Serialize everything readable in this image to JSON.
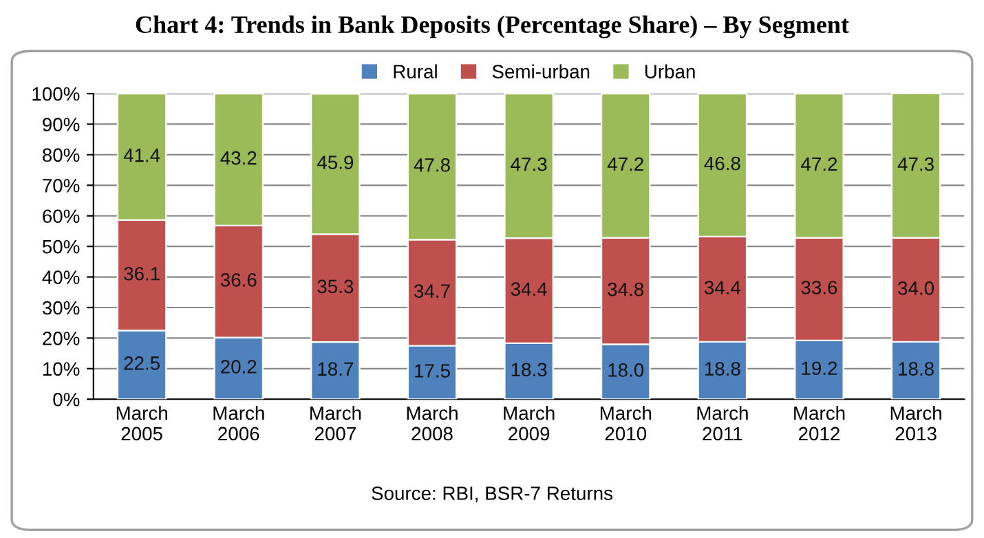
{
  "chart_data": {
    "type": "bar",
    "title": "Chart 4: Trends in Bank Deposits (Percentage Share) – By Segment",
    "categories": [
      "March\n2005",
      "March\n2006",
      "March\n2007",
      "March\n2008",
      "March\n2009",
      "March\n2010",
      "March\n2011",
      "March\n2012",
      "March\n2013"
    ],
    "series": [
      {
        "name": "Rural",
        "color": "#4f81bd",
        "values": [
          22.5,
          20.2,
          18.7,
          17.5,
          18.3,
          18.0,
          18.8,
          19.2,
          18.8
        ],
        "value_labels": [
          "22.5",
          "20.2",
          "18.7",
          "17.5",
          "18.3",
          "18.0",
          "18.8",
          "19.2",
          "18.8"
        ]
      },
      {
        "name": "Semi-urban",
        "color": "#c0504d",
        "values": [
          36.1,
          36.6,
          35.3,
          34.7,
          34.4,
          34.8,
          34.4,
          33.6,
          34.0
        ],
        "value_labels": [
          "36.1",
          "36.6",
          "35.3",
          "34.7",
          "34.4",
          "34.8",
          "34.4",
          "33.6",
          "34.0"
        ]
      },
      {
        "name": "Urban",
        "color": "#9bbb59",
        "values": [
          41.4,
          43.2,
          45.9,
          47.8,
          47.3,
          47.2,
          46.8,
          47.2,
          47.3
        ],
        "value_labels": [
          "41.4",
          "43.2",
          "45.9",
          "47.8",
          "47.3",
          "47.2",
          "46.8",
          "47.2",
          "47.3"
        ]
      }
    ],
    "stacked": true,
    "ylim": [
      0,
      100
    ],
    "yticks": [
      {
        "value": 0,
        "label": "0%"
      },
      {
        "value": 10,
        "label": "10%"
      },
      {
        "value": 20,
        "label": "20%"
      },
      {
        "value": 30,
        "label": "30%"
      },
      {
        "value": 40,
        "label": "40%"
      },
      {
        "value": 50,
        "label": "50%"
      },
      {
        "value": 60,
        "label": "60%"
      },
      {
        "value": 70,
        "label": "70%"
      },
      {
        "value": 80,
        "label": "80%"
      },
      {
        "value": 90,
        "label": "90%"
      },
      {
        "value": 100,
        "label": "100%"
      }
    ],
    "grid": "y",
    "legend": "top",
    "annotations": [
      "Source: RBI, BSR-7 Returns"
    ]
  }
}
